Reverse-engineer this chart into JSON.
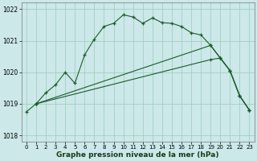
{
  "xlim": [
    -0.5,
    23.5
  ],
  "ylim": [
    1017.8,
    1022.2
  ],
  "yticks": [
    1018,
    1019,
    1020,
    1021,
    1022
  ],
  "xticks": [
    0,
    1,
    2,
    3,
    4,
    5,
    6,
    7,
    8,
    9,
    10,
    11,
    12,
    13,
    14,
    15,
    16,
    17,
    18,
    19,
    20,
    21,
    22,
    23
  ],
  "bg_color": "#cce8e8",
  "grid_color": "#99ccbb",
  "line_color": "#1a5c28",
  "line1_x": [
    0,
    1,
    2,
    3,
    4,
    5,
    6,
    7,
    8,
    9,
    10,
    11,
    12,
    13,
    14,
    15,
    16,
    17,
    18,
    19,
    20,
    21,
    22,
    23
  ],
  "line1_y": [
    1018.75,
    1019.0,
    1019.35,
    1019.6,
    1020.0,
    1019.65,
    1020.55,
    1021.05,
    1021.45,
    1021.55,
    1021.82,
    1021.75,
    1021.55,
    1021.72,
    1021.57,
    1021.55,
    1021.45,
    1021.25,
    1021.18,
    1020.85,
    1020.45,
    1020.05,
    1019.25,
    1018.8
  ],
  "line2_x": [
    1,
    19,
    20,
    21,
    22,
    23
  ],
  "line2_y": [
    1019.0,
    1020.85,
    1020.45,
    1020.05,
    1019.25,
    1018.8
  ],
  "line3_x": [
    1,
    19,
    20,
    21,
    22,
    23
  ],
  "line3_y": [
    1019.0,
    1020.4,
    1020.45,
    1020.05,
    1019.25,
    1018.8
  ],
  "xlabel": "Graphe pression niveau de la mer (hPa)",
  "tick_fontsize": 5.5,
  "xlabel_fontsize": 6.5
}
